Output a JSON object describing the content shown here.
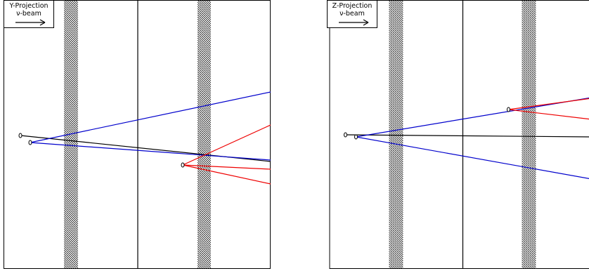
{
  "panels": [
    {
      "projection_label": "Y-Projection",
      "beam_label": "ν-beam"
    },
    {
      "projection_label": "Z-Projection",
      "beam_label": "ν-beam"
    }
  ],
  "colors": {
    "frame": "#000000",
    "blue_track": "#0000cc",
    "red_track": "#ee0000",
    "black_track": "#000000",
    "hatch": "#000000"
  }
}
